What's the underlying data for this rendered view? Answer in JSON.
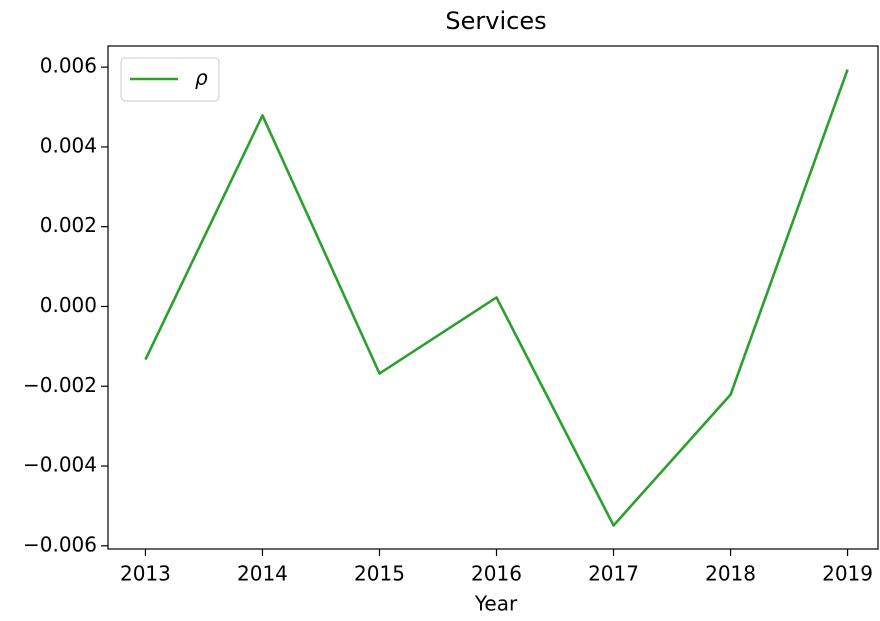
{
  "chart_data": {
    "type": "line",
    "title": "Services",
    "x_label": "Year",
    "x": [
      2013,
      2014,
      2015,
      2016,
      2017,
      2018,
      2019
    ],
    "series": [
      {
        "name": "ρ",
        "color": "#2ca02c",
        "values": [
          -0.00133,
          0.00479,
          -0.00168,
          0.000226,
          -0.00549,
          -0.00221,
          0.00594
        ]
      }
    ],
    "xlim": [
      2012.68,
      2019.26
    ],
    "xticks": [
      2013,
      2014,
      2015,
      2016,
      2017,
      2018,
      2019
    ],
    "ylim": [
      -0.00608,
      0.00653
    ],
    "yticks": [
      {
        "value": -0.006,
        "label": "−0.006"
      },
      {
        "value": -0.004,
        "label": "−0.004"
      },
      {
        "value": -0.002,
        "label": "−0.002"
      },
      {
        "value": 0,
        "label": "0.000"
      },
      0.002,
      0.004,
      0.006
    ],
    "grid": false,
    "legend": "upper left"
  }
}
